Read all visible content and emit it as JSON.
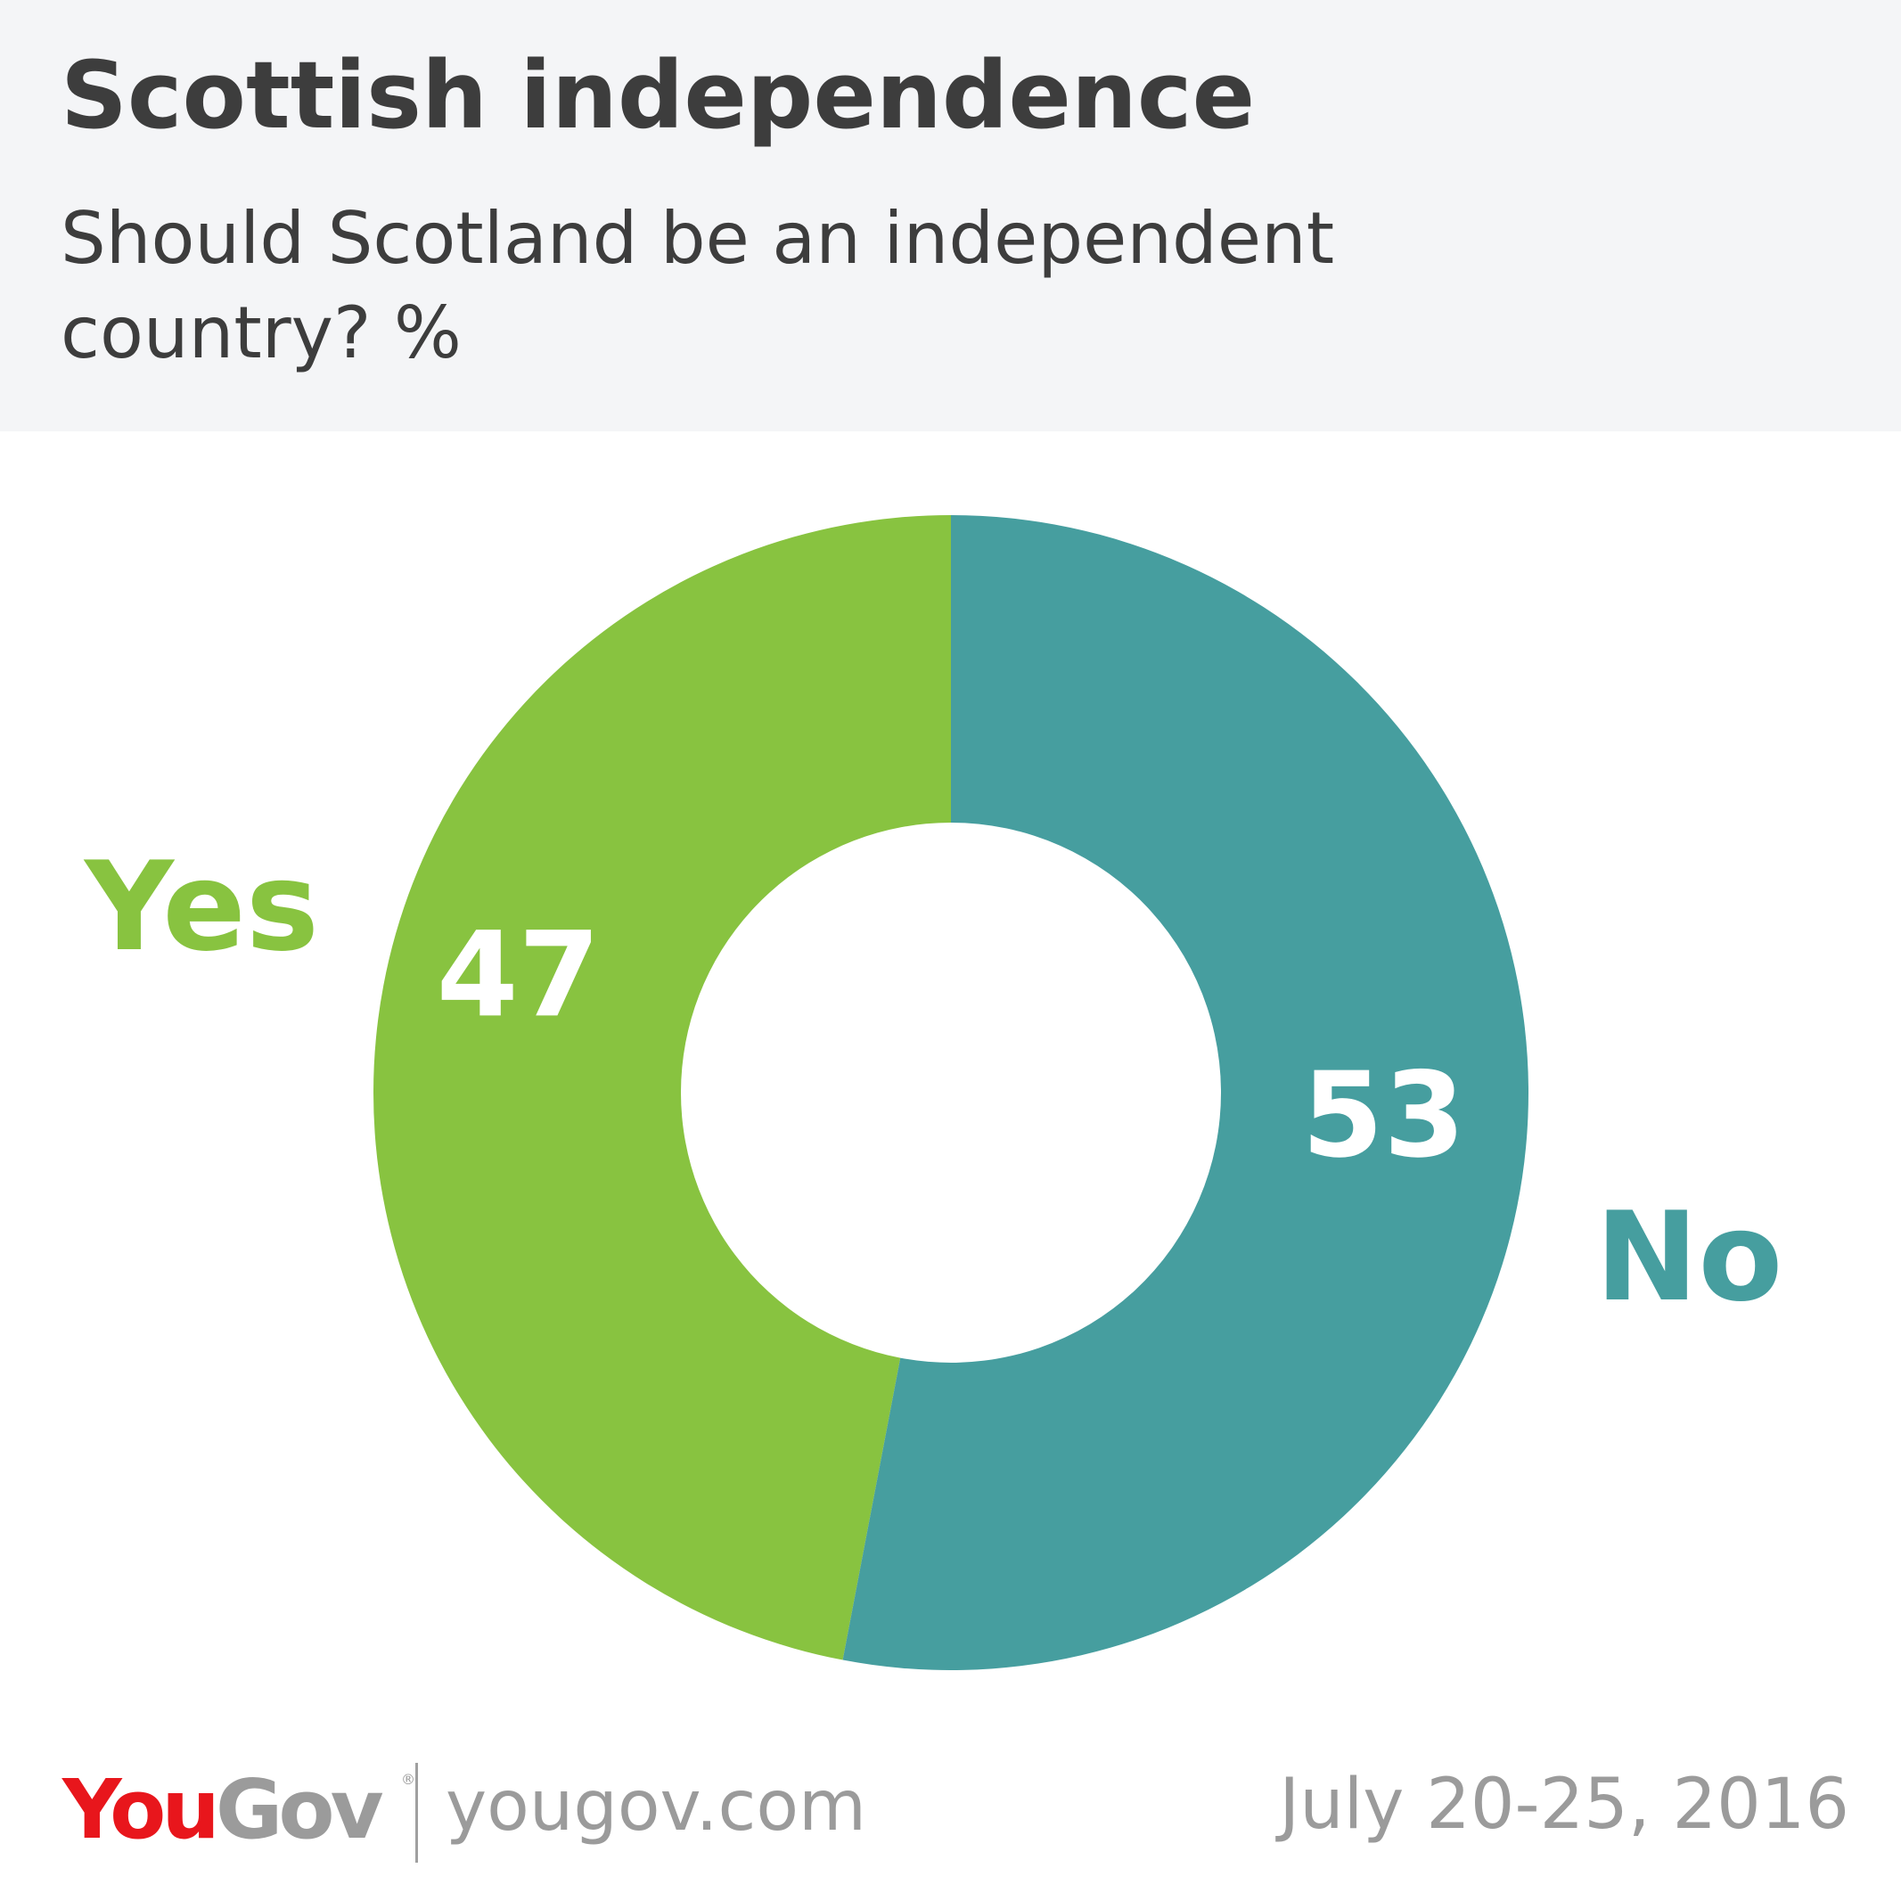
{
  "header": {
    "title": "Scottish independence",
    "subtitle": "Should Scotland be an independent country? %"
  },
  "chart_data": {
    "type": "pie",
    "title": "Scottish independence",
    "subtitle": "Should Scotland be an independent country? %",
    "style": "donut",
    "categories": [
      "Yes",
      "No"
    ],
    "values": [
      47,
      53
    ],
    "colors": [
      "#88c340",
      "#469e9f"
    ],
    "value_label_color": "#ffffff"
  },
  "footer": {
    "logo_you": "You",
    "logo_gov": "Gov",
    "logo_reg": "®",
    "url": "yougov.com",
    "date": "July 20-25, 2016"
  },
  "colors": {
    "header_background": "#f4f5f7",
    "title_text": "#3d3d3d",
    "logo_red": "#e8161c",
    "footer_grey": "#9b9b9b"
  }
}
